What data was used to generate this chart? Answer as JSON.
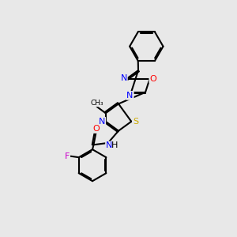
{
  "bg_color": "#e8e8e8",
  "line_color": "#000000",
  "bond_width": 1.5,
  "atom_colors": {
    "N": "#0000ff",
    "O": "#ff0000",
    "S": "#ccaa00",
    "F": "#cc00cc",
    "C": "#000000"
  },
  "font_size_atom": 8,
  "font_size_small": 7,
  "scale": 1.0
}
